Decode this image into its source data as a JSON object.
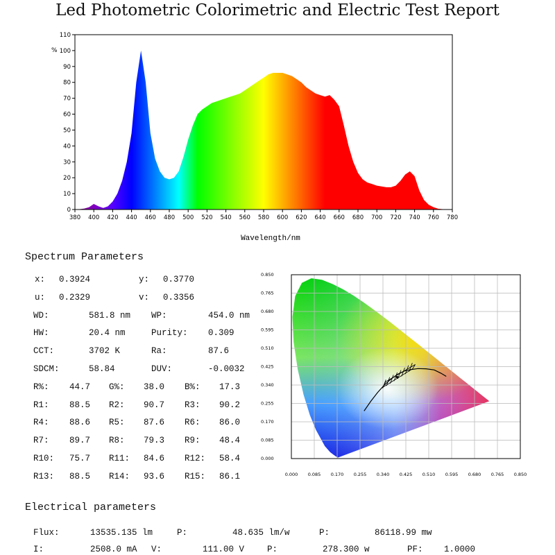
{
  "title": "Led Photometric Colorimetric and Electric Test Report",
  "chart_data": [
    {
      "type": "area",
      "xlabel": "Wavelength/nm",
      "ylabel": "%",
      "xlim": [
        380,
        780
      ],
      "ylim": [
        0,
        110
      ],
      "xticks": [
        380,
        400,
        420,
        440,
        460,
        480,
        500,
        520,
        540,
        560,
        580,
        600,
        620,
        640,
        660,
        680,
        700,
        720,
        740,
        760,
        780
      ],
      "yticks": [
        0,
        10,
        20,
        30,
        40,
        50,
        60,
        70,
        80,
        90,
        100,
        110
      ],
      "fill": "spectral colors by wavelength",
      "x": [
        380,
        385,
        390,
        395,
        400,
        405,
        410,
        415,
        420,
        425,
        430,
        435,
        440,
        445,
        450,
        455,
        460,
        465,
        470,
        475,
        480,
        485,
        490,
        495,
        500,
        505,
        510,
        515,
        520,
        525,
        530,
        535,
        540,
        545,
        550,
        555,
        560,
        565,
        570,
        575,
        580,
        585,
        590,
        595,
        600,
        605,
        610,
        615,
        620,
        625,
        630,
        635,
        640,
        645,
        650,
        655,
        660,
        665,
        670,
        675,
        680,
        685,
        690,
        695,
        700,
        705,
        710,
        715,
        720,
        725,
        730,
        735,
        740,
        745,
        750,
        755,
        760,
        765,
        770,
        775,
        780
      ],
      "y": [
        0,
        0.2,
        0.6,
        1.5,
        3.5,
        2,
        1,
        2,
        5,
        10,
        18,
        30,
        48,
        80,
        100,
        80,
        48,
        32,
        24,
        20,
        19,
        20,
        24,
        33,
        44,
        53,
        60,
        63,
        65,
        67,
        68,
        69,
        70,
        71,
        72,
        73,
        75,
        77,
        79,
        81,
        83,
        85,
        86,
        86,
        86,
        85,
        84,
        82,
        80,
        77,
        75,
        73,
        72,
        71,
        72,
        69,
        65,
        53,
        40,
        30,
        23,
        19,
        17,
        16,
        15,
        14.5,
        14,
        14,
        15,
        18,
        22,
        24,
        21,
        12,
        6,
        3,
        1.5,
        0.5,
        0.2,
        0,
        0
      ]
    },
    {
      "type": "scatter",
      "title": "",
      "xlim": [
        0,
        0.85
      ],
      "ylim": [
        0,
        0.85
      ],
      "xticks": [
        "0.000",
        "0.085",
        "0.170",
        "0.255",
        "0.340",
        "0.425",
        "0.510",
        "0.595",
        "0.680",
        "0.765",
        "0.850"
      ],
      "yticks": [
        "0.000",
        "0.085",
        "0.170",
        "0.255",
        "0.340",
        "0.425",
        "0.510",
        "0.595",
        "0.680",
        "0.765",
        "0.850"
      ],
      "locus": [
        [
          0.1741,
          0.005
        ],
        [
          0.1738,
          0.0049
        ],
        [
          0.1733,
          0.0048
        ],
        [
          0.1726,
          0.0048
        ],
        [
          0.1714,
          0.0051
        ],
        [
          0.1689,
          0.0069
        ],
        [
          0.1644,
          0.0109
        ],
        [
          0.1566,
          0.0177
        ],
        [
          0.144,
          0.0297
        ],
        [
          0.1241,
          0.0578
        ],
        [
          0.0913,
          0.1327
        ],
        [
          0.0687,
          0.2007
        ],
        [
          0.0454,
          0.295
        ],
        [
          0.0235,
          0.4127
        ],
        [
          0.0082,
          0.5384
        ],
        [
          0.0039,
          0.6548
        ],
        [
          0.0139,
          0.7502
        ],
        [
          0.0389,
          0.812
        ],
        [
          0.0743,
          0.8338
        ],
        [
          0.1142,
          0.8262
        ],
        [
          0.1547,
          0.8059
        ],
        [
          0.1929,
          0.7816
        ],
        [
          0.2296,
          0.7543
        ],
        [
          0.2658,
          0.7243
        ],
        [
          0.3016,
          0.6923
        ],
        [
          0.3373,
          0.6589
        ],
        [
          0.3731,
          0.6245
        ],
        [
          0.4087,
          0.5896
        ],
        [
          0.4441,
          0.5547
        ],
        [
          0.4788,
          0.5202
        ],
        [
          0.5125,
          0.4866
        ],
        [
          0.5448,
          0.4544
        ],
        [
          0.5752,
          0.4242
        ],
        [
          0.6029,
          0.3965
        ],
        [
          0.627,
          0.3725
        ],
        [
          0.6482,
          0.3514
        ],
        [
          0.6658,
          0.334
        ],
        [
          0.6801,
          0.3197
        ],
        [
          0.6915,
          0.3083
        ],
        [
          0.7006,
          0.2993
        ],
        [
          0.7079,
          0.292
        ],
        [
          0.714,
          0.2859
        ],
        [
          0.719,
          0.2809
        ],
        [
          0.723,
          0.277
        ],
        [
          0.726,
          0.274
        ],
        [
          0.7283,
          0.2717
        ],
        [
          0.73,
          0.27
        ],
        [
          0.7347,
          0.2653
        ]
      ],
      "planck": [
        [
          0.27,
          0.22
        ],
        [
          0.295,
          0.265
        ],
        [
          0.32,
          0.305
        ],
        [
          0.345,
          0.34
        ],
        [
          0.37,
          0.368
        ],
        [
          0.395,
          0.39
        ],
        [
          0.42,
          0.405
        ],
        [
          0.445,
          0.412
        ],
        [
          0.47,
          0.416
        ],
        [
          0.5,
          0.415
        ],
        [
          0.53,
          0.41
        ],
        [
          0.555,
          0.395
        ],
        [
          0.575,
          0.38
        ]
      ],
      "point": [
        0.3924,
        0.377
      ]
    }
  ],
  "spectrum": {
    "heading": "Spectrum Parameters",
    "rows": [
      [
        [
          "x:",
          50,
          0
        ],
        [
          "0.3924",
          85,
          0
        ],
        [
          "y:",
          200,
          0
        ],
        [
          "0.3770",
          235,
          0
        ]
      ],
      [
        [
          "u:",
          50,
          0
        ],
        [
          "0.2329",
          85,
          0
        ],
        [
          "v:",
          200,
          0
        ],
        [
          "0.3356",
          235,
          0
        ]
      ],
      [
        [
          "WD:",
          48,
          0
        ],
        [
          "581.8 nm",
          128,
          0
        ],
        [
          "WP:",
          218,
          0
        ],
        [
          "454.0 nm",
          300,
          0
        ]
      ],
      [
        [
          "HW:",
          48,
          0
        ],
        [
          "20.4 nm",
          128,
          0
        ],
        [
          "Purity:",
          218,
          0
        ],
        [
          "0.309",
          300,
          0
        ]
      ],
      [
        [
          "CCT:",
          48,
          0
        ],
        [
          "3702 K",
          128,
          0
        ],
        [
          "Ra:",
          218,
          0
        ],
        [
          "87.6",
          300,
          0
        ]
      ],
      [
        [
          "SDCM:",
          48,
          0
        ],
        [
          "58.84",
          128,
          0
        ],
        [
          "DUV:",
          218,
          0
        ],
        [
          "-0.0032",
          300,
          0
        ]
      ],
      [
        [
          "R%:",
          48,
          0
        ],
        [
          "44.7",
          100,
          0
        ],
        [
          "G%:",
          157,
          0
        ],
        [
          "38.0",
          207,
          0
        ],
        [
          "B%:",
          266,
          0
        ],
        [
          "17.3",
          316,
          0
        ]
      ],
      [
        [
          "R1:",
          48,
          0
        ],
        [
          "88.5",
          100,
          0
        ],
        [
          "R2:",
          157,
          0
        ],
        [
          "90.7",
          207,
          0
        ],
        [
          "R3:",
          266,
          0
        ],
        [
          "90.2",
          316,
          0
        ]
      ],
      [
        [
          "R4:",
          48,
          0
        ],
        [
          "88.6",
          100,
          0
        ],
        [
          "R5:",
          157,
          0
        ],
        [
          "87.6",
          207,
          0
        ],
        [
          "R6:",
          266,
          0
        ],
        [
          "86.0",
          316,
          0
        ]
      ],
      [
        [
          "R7:",
          48,
          0
        ],
        [
          "89.7",
          100,
          0
        ],
        [
          "R8:",
          157,
          0
        ],
        [
          "79.3",
          207,
          0
        ],
        [
          "R9:",
          266,
          0
        ],
        [
          "48.4",
          316,
          0
        ]
      ],
      [
        [
          "R10:",
          48,
          0
        ],
        [
          "75.7",
          100,
          0
        ],
        [
          "R11:",
          157,
          0
        ],
        [
          "84.6",
          207,
          0
        ],
        [
          "R12:",
          266,
          0
        ],
        [
          "58.4",
          316,
          0
        ]
      ],
      [
        [
          "R13:",
          48,
          0
        ],
        [
          "88.5",
          100,
          0
        ],
        [
          "R14:",
          157,
          0
        ],
        [
          "93.6",
          207,
          0
        ],
        [
          "R15:",
          266,
          0
        ],
        [
          "86.1",
          316,
          0
        ]
      ]
    ]
  },
  "electrical": {
    "heading": "Electrical parameters",
    "rows": [
      [
        [
          "Flux:",
          48,
          0
        ],
        [
          "13535.135 lm",
          130,
          0
        ],
        [
          "P:",
          255,
          0
        ],
        [
          "48.635 lm/w",
          335,
          0
        ],
        [
          "P:",
          460,
          0
        ],
        [
          "86118.99 mw",
          540,
          0
        ]
      ],
      [
        [
          "I:",
          48,
          0
        ],
        [
          "2508.0 mA",
          130,
          0
        ],
        [
          "V:",
          218,
          0
        ],
        [
          "111.00 V",
          292,
          0
        ],
        [
          "P:",
          385,
          0
        ],
        [
          "278.300 w",
          465,
          0
        ],
        [
          "PF:",
          587,
          0
        ],
        [
          "1.0000",
          640,
          0
        ]
      ]
    ]
  }
}
